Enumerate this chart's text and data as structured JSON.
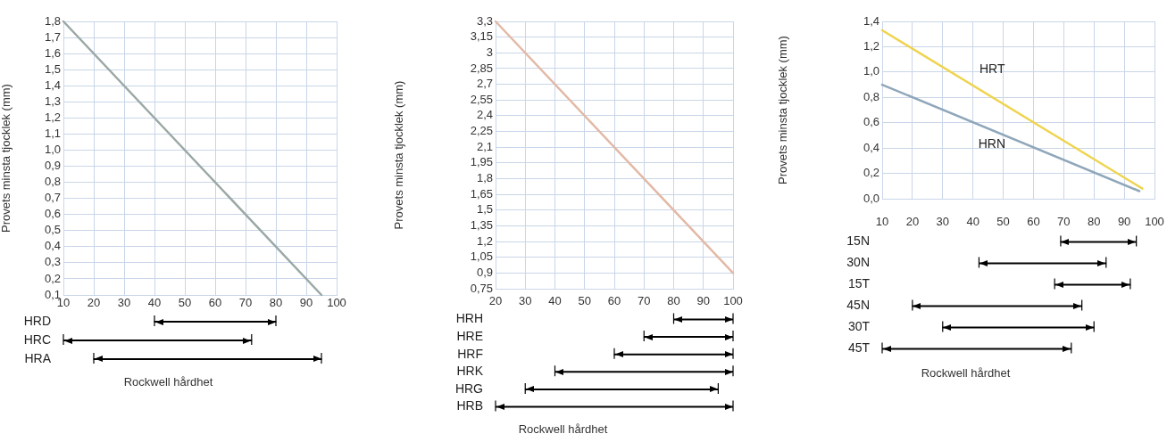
{
  "chart_data": [
    {
      "type": "line",
      "x": [
        10,
        95
      ],
      "values": [
        1.8,
        0.1
      ],
      "color": "#9aa8a6",
      "ylabel": "Provets minsta tjocklek (mm)",
      "xlim": [
        10,
        100
      ],
      "xticks": [
        10,
        20,
        30,
        40,
        50,
        60,
        70,
        80,
        90,
        100
      ],
      "ylim": [
        0.1,
        1.8
      ],
      "yticks": [
        {
          "value": 0.1,
          "label": "0,1"
        },
        {
          "value": 0.2,
          "label": "0,2"
        },
        {
          "value": 0.3,
          "label": "0,3"
        },
        {
          "value": 0.4,
          "label": "0,4"
        },
        {
          "value": 0.5,
          "label": "0,5"
        },
        {
          "value": 0.6,
          "label": "0,6"
        },
        {
          "value": 0.7,
          "label": "0,7"
        },
        {
          "value": 0.8,
          "label": "0,8"
        },
        {
          "value": 0.9,
          "label": "0,9"
        },
        {
          "value": 1.0,
          "label": "1,0"
        },
        {
          "value": 1.1,
          "label": "1,1"
        },
        {
          "value": 1.2,
          "label": "1,2"
        },
        {
          "value": 1.3,
          "label": "1,3"
        },
        {
          "value": 1.4,
          "label": "1,4"
        },
        {
          "value": 1.5,
          "label": "1,5"
        },
        {
          "value": 1.6,
          "label": "1,6"
        },
        {
          "value": 1.7,
          "label": "1,7"
        },
        {
          "value": 1.8,
          "label": "1,8"
        }
      ],
      "grid": true,
      "tick_labels": "y"
    },
    {
      "type": "bar",
      "orientation": "horizontal",
      "categories": [
        "HRD",
        "HRC",
        "HRA"
      ],
      "base": [
        40,
        10,
        20
      ],
      "values": [
        40,
        62,
        75
      ],
      "color": "#000000",
      "xlabel": "Rockwell hårdhet",
      "xlim": [
        10,
        100
      ],
      "xticks": [
        10,
        20,
        30,
        40,
        50,
        60,
        70,
        80,
        90,
        100
      ]
    },
    {
      "type": "line",
      "x": [
        20,
        100
      ],
      "values": [
        3.3,
        0.9
      ],
      "color": "#e2b9a6",
      "ylabel": "Provets minsta tjocklek (mm)",
      "xlim": [
        20,
        100
      ],
      "xticks": [
        20,
        30,
        40,
        50,
        60,
        70,
        80,
        90,
        100
      ],
      "ylim": [
        0.75,
        3.3
      ],
      "yticks": [
        {
          "value": 0.75,
          "label": "0,75"
        },
        {
          "value": 0.9,
          "label": "0,9"
        },
        {
          "value": 1.05,
          "label": "1,05"
        },
        {
          "value": 1.2,
          "label": "1,2"
        },
        {
          "value": 1.35,
          "label": "1,35"
        },
        {
          "value": 1.5,
          "label": "1,5"
        },
        {
          "value": 1.65,
          "label": "1,65"
        },
        {
          "value": 1.8,
          "label": "1,8"
        },
        {
          "value": 1.95,
          "label": "1,95"
        },
        {
          "value": 2.1,
          "label": "2,1"
        },
        {
          "value": 2.25,
          "label": "2,25"
        },
        {
          "value": 2.4,
          "label": "2,4"
        },
        {
          "value": 2.55,
          "label": "2,55"
        },
        {
          "value": 2.7,
          "label": "2,7"
        },
        {
          "value": 2.85,
          "label": "2,85"
        },
        3,
        {
          "value": 3.15,
          "label": "3,15"
        },
        {
          "value": 3.3,
          "label": "3,3"
        }
      ],
      "grid": true,
      "tick_labels": "y"
    },
    {
      "type": "bar",
      "orientation": "horizontal",
      "categories": [
        "HRH",
        "HRE",
        "HRF",
        "HRK",
        "HRG",
        "HRB"
      ],
      "base": [
        80,
        70,
        60,
        40,
        30,
        20
      ],
      "values": [
        20,
        30,
        40,
        60,
        65,
        80
      ],
      "color": "#000000",
      "xlabel": "Rockwell hårdhet",
      "xlim": [
        20,
        100
      ],
      "xticks": [
        20,
        30,
        40,
        50,
        60,
        70,
        80,
        90,
        100
      ]
    },
    {
      "type": "line",
      "series": [
        {
          "name": "HRT",
          "color": "#efd44f",
          "x": [
            10,
            96
          ],
          "values": [
            1.33,
            0.08
          ]
        },
        {
          "name": "HRN",
          "color": "#8fa6ba",
          "x": [
            10,
            95
          ],
          "values": [
            0.9,
            0.06
          ]
        }
      ],
      "ylabel": "Provets minsta tjocklek (mm)",
      "xlim": [
        10,
        100
      ],
      "xticks": [
        10,
        20,
        30,
        40,
        50,
        60,
        70,
        80,
        90,
        100
      ],
      "ylim": [
        0,
        1.4
      ],
      "yticks": [
        {
          "value": 0,
          "label": "0,0"
        },
        {
          "value": 0.2,
          "label": "0,2"
        },
        {
          "value": 0.4,
          "label": "0,4"
        },
        {
          "value": 0.6,
          "label": "0,6"
        },
        {
          "value": 0.8,
          "label": "0,8"
        },
        {
          "value": 1.0,
          "label": "1,0"
        },
        {
          "value": 1.2,
          "label": "1,2"
        },
        {
          "value": 1.4,
          "label": "1,4"
        }
      ],
      "grid": true,
      "tick_labels": "y"
    },
    {
      "type": "bar",
      "orientation": "horizontal",
      "categories": [
        "15N",
        "30N",
        "15T",
        "45N",
        "30T",
        "45T"
      ],
      "base": [
        69,
        42,
        67,
        20,
        30,
        10
      ],
      "values": [
        25,
        42,
        25,
        56,
        50,
        62.5
      ],
      "color": "#000000",
      "xlabel": "Rockwell hårdhet",
      "xlim": [
        10,
        100
      ],
      "xticks": [
        10,
        20,
        30,
        40,
        50,
        60,
        70,
        80,
        90,
        100
      ]
    }
  ]
}
